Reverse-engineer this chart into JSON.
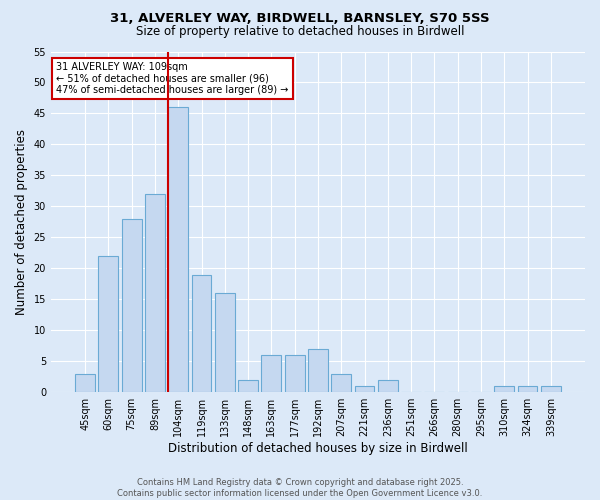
{
  "title_line1": "31, ALVERLEY WAY, BIRDWELL, BARNSLEY, S70 5SS",
  "title_line2": "Size of property relative to detached houses in Birdwell",
  "xlabel": "Distribution of detached houses by size in Birdwell",
  "ylabel": "Number of detached properties",
  "categories": [
    "45sqm",
    "60sqm",
    "75sqm",
    "89sqm",
    "104sqm",
    "119sqm",
    "133sqm",
    "148sqm",
    "163sqm",
    "177sqm",
    "192sqm",
    "207sqm",
    "221sqm",
    "236sqm",
    "251sqm",
    "266sqm",
    "280sqm",
    "295sqm",
    "310sqm",
    "324sqm",
    "339sqm"
  ],
  "values": [
    3,
    22,
    28,
    32,
    46,
    19,
    16,
    2,
    6,
    6,
    7,
    3,
    1,
    2,
    0,
    0,
    0,
    0,
    1,
    1,
    1
  ],
  "bar_color": "#c5d8f0",
  "bar_edge_color": "#6aaad4",
  "highlight_bar_index": 4,
  "highlight_line_color": "#cc0000",
  "ylim": [
    0,
    55
  ],
  "yticks": [
    0,
    5,
    10,
    15,
    20,
    25,
    30,
    35,
    40,
    45,
    50,
    55
  ],
  "annotation_text": "31 ALVERLEY WAY: 109sqm\n← 51% of detached houses are smaller (96)\n47% of semi-detached houses are larger (89) →",
  "annotation_box_color": "#ffffff",
  "annotation_box_edge_color": "#cc0000",
  "footer_text": "Contains HM Land Registry data © Crown copyright and database right 2025.\nContains public sector information licensed under the Open Government Licence v3.0.",
  "background_color": "#dce9f8",
  "grid_color": "#ffffff",
  "fig_width": 6.0,
  "fig_height": 5.0,
  "dpi": 100
}
